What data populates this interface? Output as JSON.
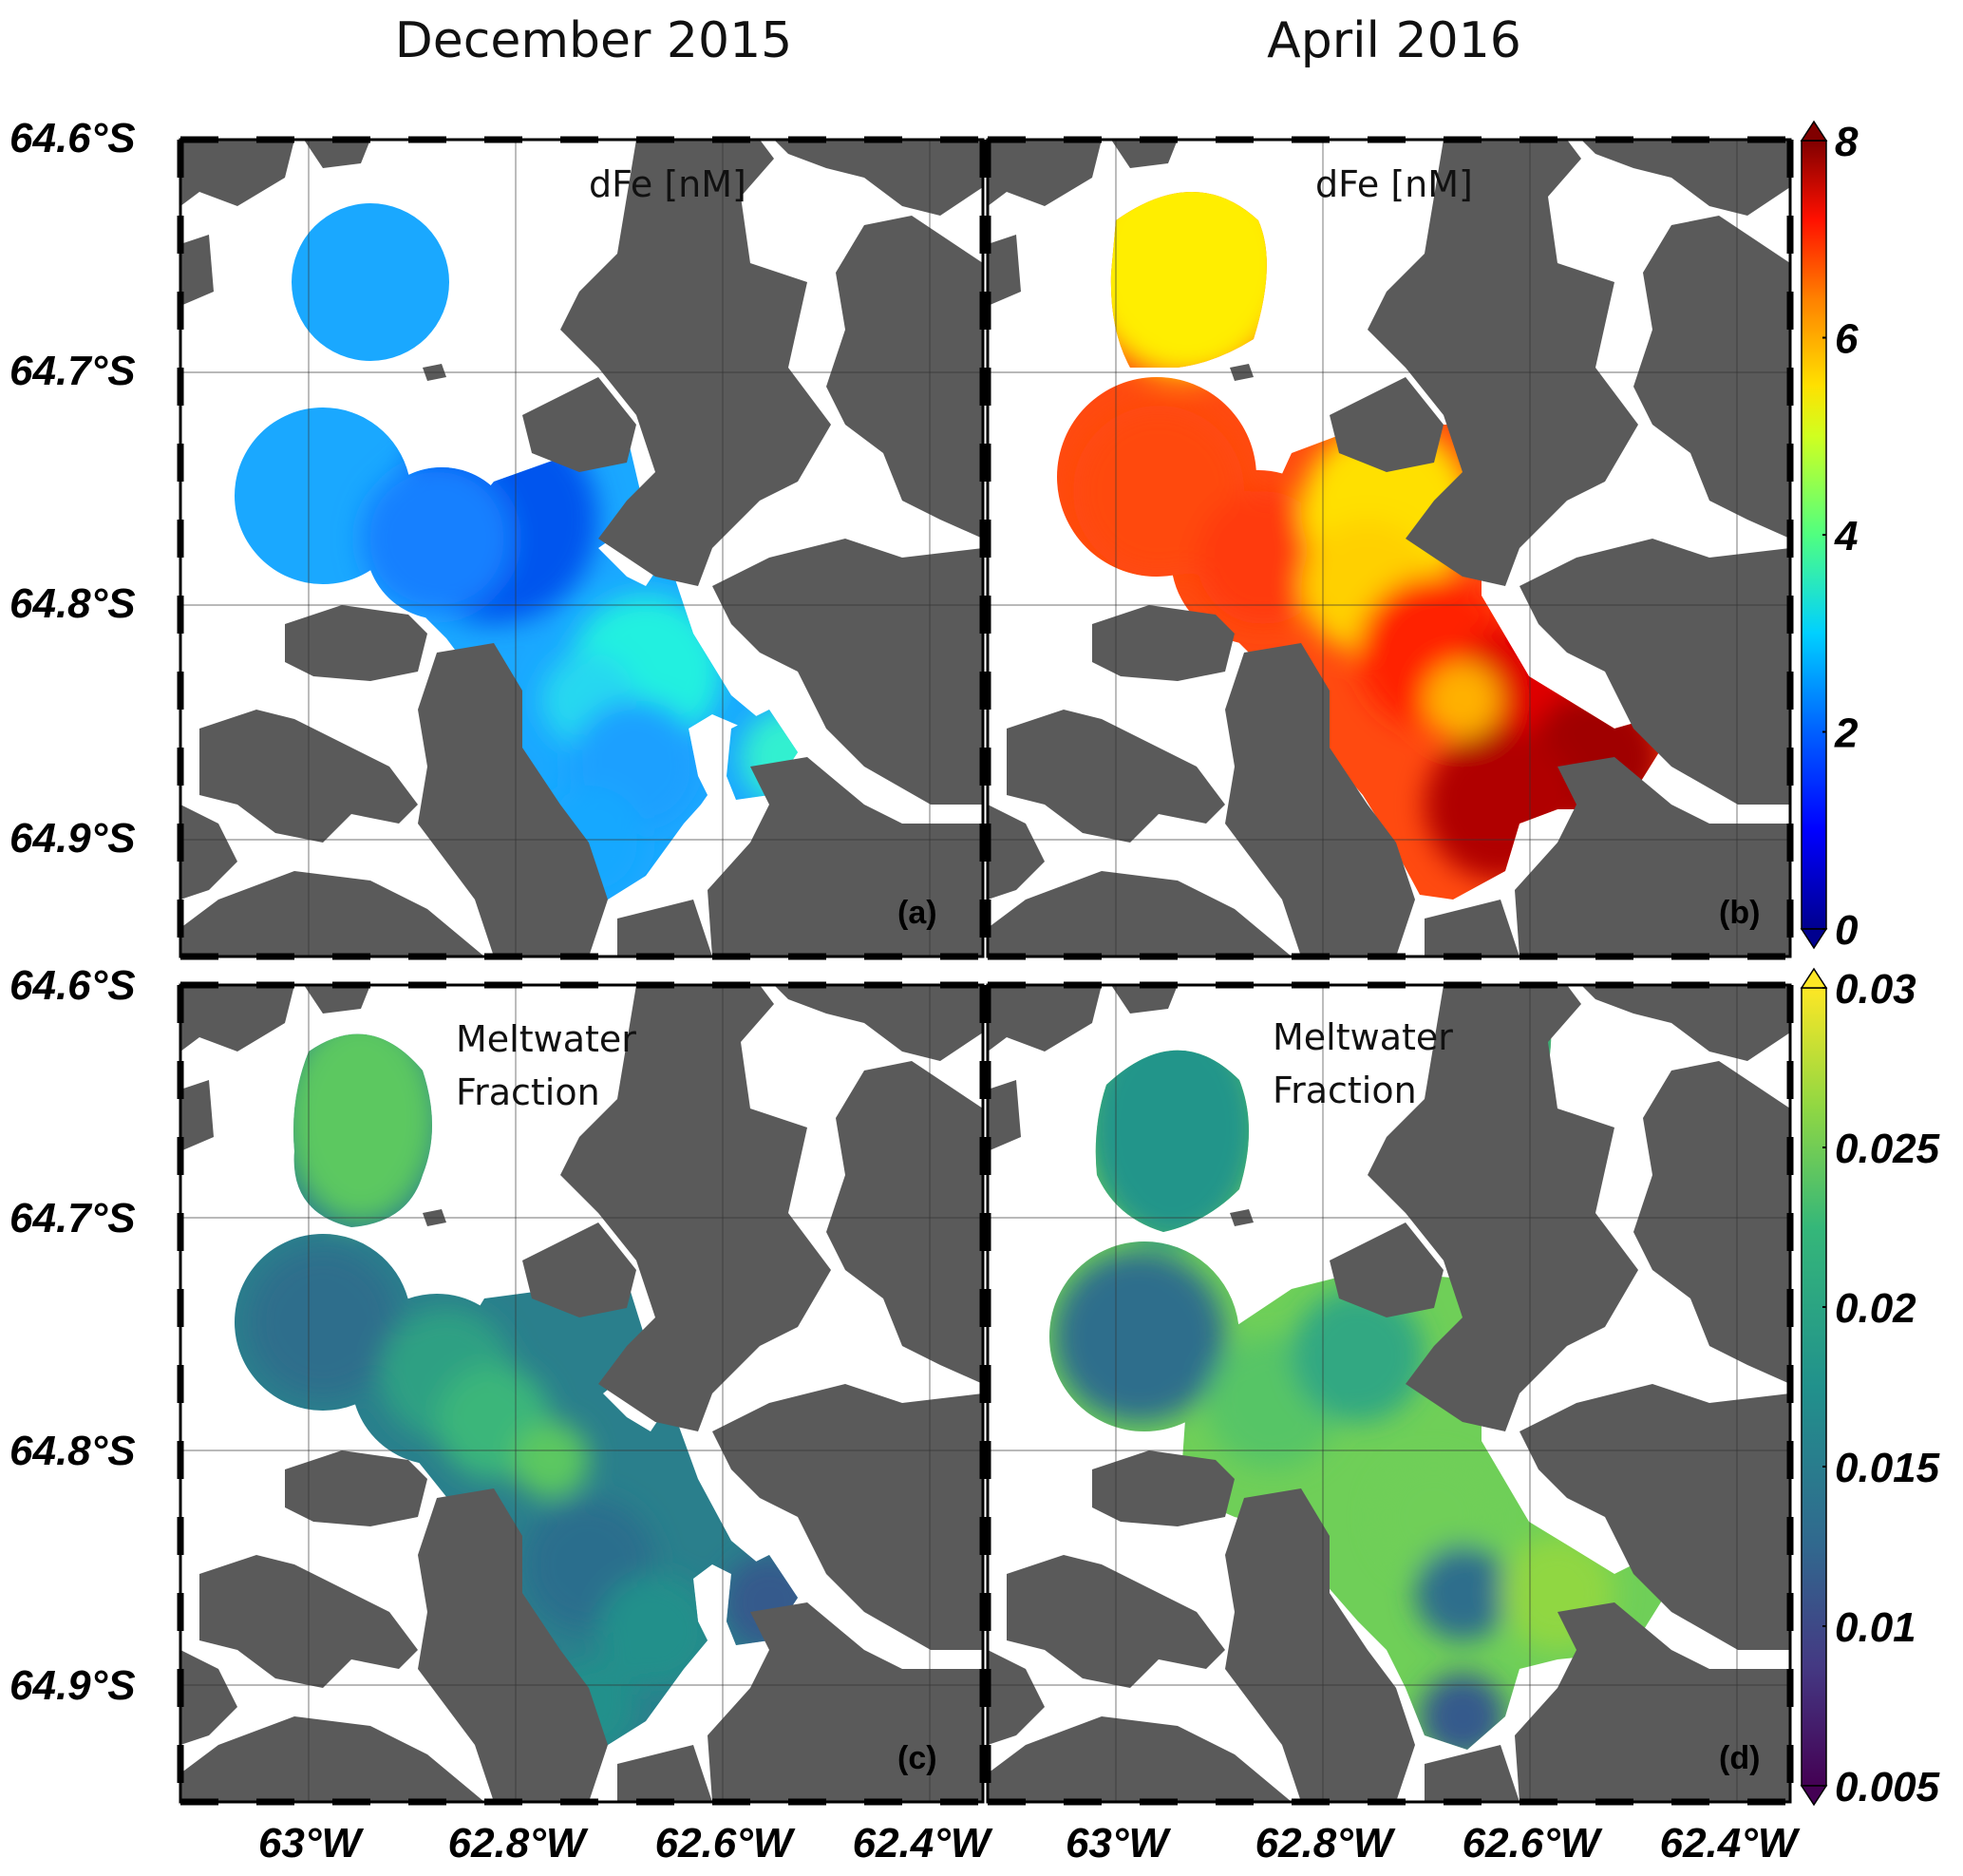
{
  "column_titles": [
    "December 2015",
    "April 2016"
  ],
  "lat_labels": [
    "64.6°S",
    "64.7°S",
    "64.8°S",
    "64.9°S"
  ],
  "lon_labels": [
    "63°W",
    "62.8°W",
    "62.6°W",
    "62.4°W"
  ],
  "panels": [
    {
      "tag": "(a)",
      "variable": "dFe [nM]",
      "variable_lines": [
        "dFe [nM]"
      ],
      "field": "dFe",
      "month": "December 2015"
    },
    {
      "tag": "(b)",
      "variable": "dFe [nM]",
      "variable_lines": [
        "dFe [nM]"
      ],
      "field": "dFe",
      "month": "April 2016"
    },
    {
      "tag": "(c)",
      "variable": "Meltwater Fraction",
      "variable_lines": [
        "Meltwater",
        "Fraction"
      ],
      "field": "meltwater",
      "month": "December 2015"
    },
    {
      "tag": "(d)",
      "variable": "Meltwater Fraction",
      "variable_lines": [
        "Meltwater",
        "Fraction"
      ],
      "field": "meltwater",
      "month": "April 2016"
    }
  ],
  "colorbars": [
    {
      "field": "dFe",
      "colormap": "jet",
      "min": 0,
      "max": 8,
      "tick_labels": [
        "8",
        "6",
        "4",
        "2",
        "0"
      ],
      "colors": [
        "#00008f",
        "#0000ff",
        "#0080ff",
        "#00ffff",
        "#80ff80",
        "#ffff00",
        "#ff8000",
        "#ff0000",
        "#800000"
      ]
    },
    {
      "field": "meltwater",
      "colormap": "viridis",
      "min": 0.005,
      "max": 0.03,
      "tick_labels": [
        "0.03",
        "0.025",
        "0.02",
        "0.015",
        "0.01",
        "0.005"
      ],
      "colors": [
        "#440154",
        "#3b528b",
        "#21918c",
        "#5ec962",
        "#fde725"
      ]
    }
  ],
  "colors": {
    "land": "#5a5a5a",
    "water": "#ffffff"
  }
}
